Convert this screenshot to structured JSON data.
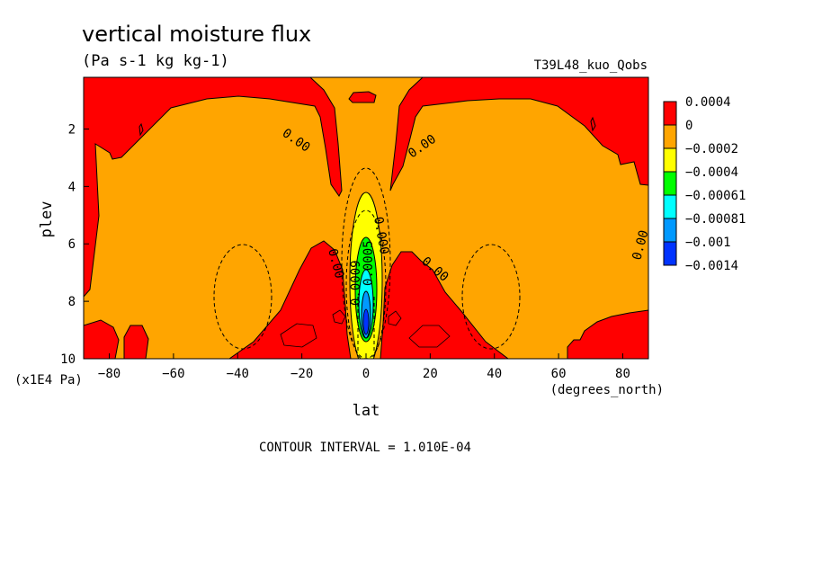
{
  "chart_data": {
    "type": "heatmap",
    "title": "vertical moisture flux",
    "units": "(Pa s-1 kg kg-1)",
    "run_label": "T39L48_kuo_Qobs",
    "xlabel": "lat",
    "x_units": "(degrees_north)",
    "ylabel": "plev",
    "y_units": "(x1E4 Pa)",
    "xlim": [
      -88,
      88
    ],
    "ylim": [
      0.2,
      10
    ],
    "y_inverted": true,
    "x_ticks": [
      "-80",
      "-60",
      "-40",
      "-20",
      "0",
      "20",
      "40",
      "60",
      "80"
    ],
    "y_ticks": [
      "2",
      "4",
      "6",
      "8",
      "10"
    ],
    "contour_labels": [
      "0.00",
      "0.00",
      "0.000",
      "0.00",
      "0.00",
      "0.00",
      "0.0005",
      "0.0009"
    ],
    "contour_interval_text": "CONTOUR INTERVAL = 1.010E-04",
    "legend": {
      "labels": [
        "0.0004",
        "0",
        "-0.0002",
        "-0.0004",
        "-0.00061",
        "-0.00081",
        "-0.001",
        "-0.0014"
      ],
      "colors": [
        "#ff0000",
        "#ffa500",
        "#ffff00",
        "#00ff00",
        "#00ffff",
        "#0099ff",
        "#0033ff"
      ]
    },
    "colors": {
      "positive": "#ff0000",
      "near_zero": "#ffa500",
      "neg1": "#ffff00",
      "neg2": "#00ff00",
      "neg3": "#00ffff",
      "neg4": "#0099ff",
      "neg5": "#0033ff"
    }
  }
}
